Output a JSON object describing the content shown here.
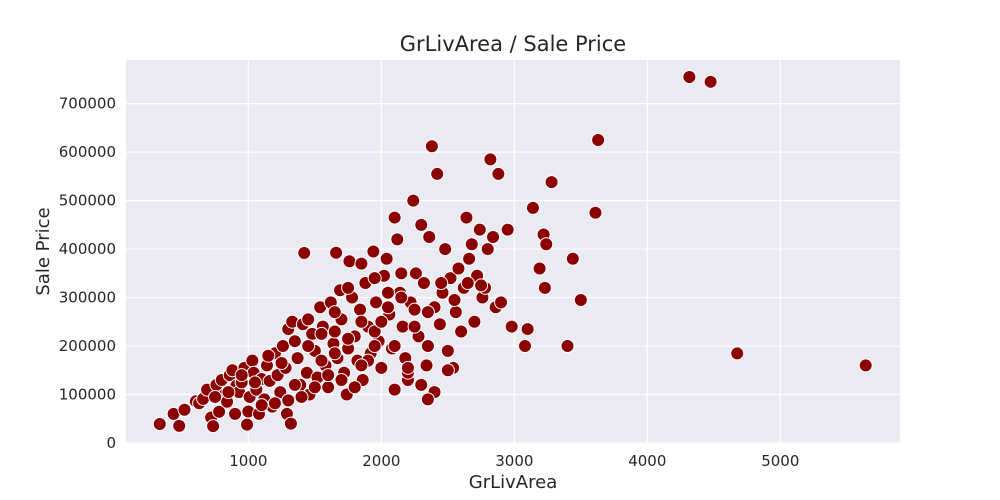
{
  "chart_data": {
    "type": "scatter",
    "title": "GrLivArea / Sale Price",
    "xlabel": "GrLivArea",
    "ylabel": "Sale Price",
    "xlim": [
      80,
      5900
    ],
    "ylim": [
      0,
      790000
    ],
    "xticks": [
      1000,
      2000,
      3000,
      4000,
      5000
    ],
    "yticks": [
      0,
      100000,
      200000,
      300000,
      400000,
      500000,
      600000,
      700000
    ],
    "grid": true,
    "legend": "none",
    "colors": {
      "point": "#8b0000",
      "point_edge": "#ffffff",
      "plot_background": "#eaeaf2",
      "grid": "#ffffff",
      "text": "#262626"
    },
    "points": [
      [
        334,
        39300
      ],
      [
        438,
        60000
      ],
      [
        480,
        35311
      ],
      [
        520,
        68500
      ],
      [
        605,
        86000
      ],
      [
        630,
        82000
      ],
      [
        660,
        91000
      ],
      [
        690,
        110000
      ],
      [
        720,
        52500
      ],
      [
        735,
        34900
      ],
      [
        760,
        120000
      ],
      [
        780,
        64500
      ],
      [
        800,
        130000
      ],
      [
        820,
        99000
      ],
      [
        840,
        85000
      ],
      [
        860,
        140000
      ],
      [
        880,
        150000
      ],
      [
        900,
        60000
      ],
      [
        910,
        118000
      ],
      [
        930,
        105000
      ],
      [
        950,
        125000
      ],
      [
        970,
        155000
      ],
      [
        990,
        38000
      ],
      [
        1000,
        65000
      ],
      [
        1010,
        95000
      ],
      [
        1030,
        170000
      ],
      [
        1040,
        145000
      ],
      [
        1060,
        110000
      ],
      [
        1080,
        60000
      ],
      [
        1100,
        132000
      ],
      [
        1120,
        90000
      ],
      [
        1140,
        160000
      ],
      [
        1160,
        128000
      ],
      [
        1180,
        75000
      ],
      [
        1200,
        185000
      ],
      [
        1220,
        140000
      ],
      [
        1240,
        105000
      ],
      [
        1260,
        200000
      ],
      [
        1280,
        155000
      ],
      [
        1290,
        60000
      ],
      [
        1300,
        235000
      ],
      [
        1320,
        40000
      ],
      [
        1330,
        250000
      ],
      [
        1350,
        210000
      ],
      [
        1370,
        175000
      ],
      [
        1390,
        120000
      ],
      [
        1410,
        245000
      ],
      [
        1420,
        392000
      ],
      [
        1440,
        145000
      ],
      [
        1460,
        100000
      ],
      [
        1480,
        225000
      ],
      [
        1500,
        190000
      ],
      [
        1520,
        135000
      ],
      [
        1540,
        280000
      ],
      [
        1560,
        240000
      ],
      [
        1580,
        160000
      ],
      [
        1600,
        115000
      ],
      [
        1620,
        290000
      ],
      [
        1640,
        205000
      ],
      [
        1660,
        392500
      ],
      [
        1670,
        175000
      ],
      [
        1690,
        315000
      ],
      [
        1700,
        255000
      ],
      [
        1720,
        145000
      ],
      [
        1740,
        100000
      ],
      [
        1760,
        375000
      ],
      [
        1780,
        300000
      ],
      [
        1800,
        220000
      ],
      [
        1820,
        170000
      ],
      [
        1840,
        275000
      ],
      [
        1860,
        130000
      ],
      [
        1880,
        330000
      ],
      [
        1900,
        240000
      ],
      [
        1920,
        185000
      ],
      [
        1940,
        395000
      ],
      [
        1960,
        290000
      ],
      [
        1980,
        210000
      ],
      [
        2000,
        155000
      ],
      [
        2020,
        345000
      ],
      [
        2040,
        380000
      ],
      [
        2060,
        265000
      ],
      [
        2080,
        195000
      ],
      [
        2100,
        465000
      ],
      [
        2120,
        420000
      ],
      [
        2140,
        310000
      ],
      [
        2160,
        240000
      ],
      [
        2180,
        175000
      ],
      [
        2200,
        130000
      ],
      [
        2220,
        290000
      ],
      [
        2240,
        500000
      ],
      [
        2260,
        350000
      ],
      [
        2280,
        220000
      ],
      [
        2300,
        450000
      ],
      [
        2320,
        330000
      ],
      [
        2340,
        160000
      ],
      [
        2360,
        425000
      ],
      [
        2380,
        612000
      ],
      [
        2400,
        280000
      ],
      [
        2420,
        555000
      ],
      [
        2440,
        245000
      ],
      [
        2460,
        310000
      ],
      [
        2480,
        400000
      ],
      [
        2500,
        190000
      ],
      [
        2520,
        340000
      ],
      [
        2540,
        155000
      ],
      [
        2560,
        270000
      ],
      [
        2580,
        360000
      ],
      [
        2600,
        230000
      ],
      [
        2620,
        320000
      ],
      [
        2640,
        465000
      ],
      [
        2660,
        380000
      ],
      [
        2680,
        410000
      ],
      [
        2700,
        250000
      ],
      [
        2720,
        345000
      ],
      [
        2740,
        440000
      ],
      [
        2760,
        300000
      ],
      [
        2780,
        320000
      ],
      [
        2800,
        400000
      ],
      [
        2820,
        585000
      ],
      [
        2840,
        425000
      ],
      [
        2860,
        280000
      ],
      [
        2880,
        555000
      ],
      [
        2900,
        290000
      ],
      [
        2950,
        440000
      ],
      [
        2980,
        240000
      ],
      [
        3080,
        200000
      ],
      [
        3100,
        235000
      ],
      [
        3140,
        485000
      ],
      [
        3190,
        360000
      ],
      [
        3220,
        430000
      ],
      [
        3230,
        320000
      ],
      [
        3240,
        410000
      ],
      [
        3280,
        538000
      ],
      [
        3400,
        200000
      ],
      [
        3440,
        380000
      ],
      [
        3500,
        295000
      ],
      [
        3610,
        475000
      ],
      [
        3630,
        625000
      ],
      [
        4316,
        755000
      ],
      [
        4476,
        745000
      ],
      [
        4676,
        184750
      ],
      [
        5642,
        160000
      ],
      [
        1150,
        180000
      ],
      [
        1250,
        165000
      ],
      [
        1350,
        120000
      ],
      [
        1450,
        200000
      ],
      [
        1550,
        170000
      ],
      [
        1650,
        230000
      ],
      [
        1750,
        195000
      ],
      [
        1850,
        250000
      ],
      [
        1950,
        230000
      ],
      [
        2050,
        280000
      ],
      [
        2150,
        350000
      ],
      [
        2250,
        275000
      ],
      [
        2350,
        270000
      ],
      [
        2450,
        330000
      ],
      [
        2550,
        295000
      ],
      [
        2650,
        330000
      ],
      [
        2750,
        325000
      ],
      [
        1050,
        125000
      ],
      [
        950,
        140000
      ],
      [
        850,
        105000
      ],
      [
        750,
        95000
      ],
      [
        1700,
        130000
      ],
      [
        1800,
        115000
      ],
      [
        1900,
        170000
      ],
      [
        2000,
        250000
      ],
      [
        2100,
        200000
      ],
      [
        2200,
        145000
      ],
      [
        2300,
        120000
      ],
      [
        2400,
        105000
      ],
      [
        2500,
        150000
      ],
      [
        1600,
        140000
      ],
      [
        1500,
        115000
      ],
      [
        1400,
        95000
      ],
      [
        1300,
        88000
      ],
      [
        1200,
        82000
      ],
      [
        1100,
        78000
      ],
      [
        2100,
        110000
      ],
      [
        2200,
        155000
      ],
      [
        2350,
        90000
      ],
      [
        1650,
        270000
      ],
      [
        1750,
        320000
      ],
      [
        1850,
        370000
      ],
      [
        1950,
        340000
      ],
      [
        2050,
        310000
      ],
      [
        2150,
        300000
      ],
      [
        2250,
        240000
      ],
      [
        2350,
        200000
      ],
      [
        1450,
        255000
      ],
      [
        1550,
        225000
      ],
      [
        1650,
        185000
      ],
      [
        1750,
        215000
      ],
      [
        1850,
        160000
      ],
      [
        1950,
        200000
      ]
    ]
  }
}
